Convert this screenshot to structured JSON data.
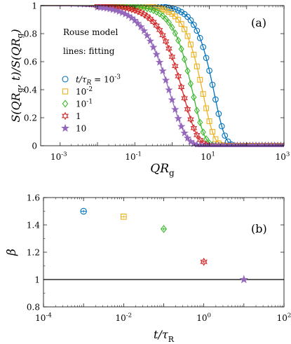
{
  "chart_data": [
    {
      "type": "scatter",
      "panel_label": "(a)",
      "annotation_lines": [
        "Rouse model",
        "lines: fitting"
      ],
      "xlabel": {
        "main": "QR",
        "sub": "g"
      },
      "ylabel": "S(QR_g, t) / S(QR_g)",
      "x_scale": "log",
      "xlim": [
        0.0003,
        1000
      ],
      "ylim": [
        0,
        1
      ],
      "x_ticks": [
        {
          "value": 0.001,
          "label": "10",
          "exp": "-3"
        },
        {
          "value": 0.1,
          "label": "10",
          "exp": "-1"
        },
        {
          "value": 10,
          "label": "10",
          "exp": "1"
        },
        {
          "value": 1000,
          "label": "10",
          "exp": "3"
        }
      ],
      "y_ticks": [
        {
          "value": 0,
          "label": "0"
        },
        {
          "value": 0.2,
          "label": "0.2"
        },
        {
          "value": 0.4,
          "label": "0.4"
        },
        {
          "value": 0.6,
          "label": "0.6"
        },
        {
          "value": 0.8,
          "label": "0.8"
        },
        {
          "value": 1,
          "label": "1"
        }
      ],
      "legend_position": "middle-left",
      "series": [
        {
          "name": "t/τ_R = 10^-3",
          "legend_main": "t/τ",
          "legend_sub": "R",
          "legend_rest": " = 10",
          "legend_exp": "-3",
          "marker": "circle",
          "color": "#0072BD",
          "q_half": 10.7,
          "beta": 1.5
        },
        {
          "name": "10^-2",
          "legend_main": "10",
          "legend_sub": "",
          "legend_rest": "",
          "legend_exp": "-2",
          "marker": "square",
          "color": "#EDB120",
          "q_half": 5.3,
          "beta": 1.46
        },
        {
          "name": "10^-1",
          "legend_main": "10",
          "legend_sub": "",
          "legend_rest": "",
          "legend_exp": "-1",
          "marker": "diamond",
          "color": "#3DB82E",
          "q_half": 2.8,
          "beta": 1.37
        },
        {
          "name": "1",
          "legend_main": "1",
          "legend_sub": "",
          "legend_rest": "",
          "legend_exp": "",
          "marker": "hexagram",
          "color": "#D62728",
          "q_half": 1.45,
          "beta": 1.13
        },
        {
          "name": "10",
          "legend_main": "10",
          "legend_sub": "",
          "legend_rest": "",
          "legend_exp": "",
          "marker": "pentagram",
          "color": "#9467BD",
          "q_half": 0.62,
          "beta": 1.0
        }
      ]
    },
    {
      "type": "scatter",
      "panel_label": "(b)",
      "xlabel": {
        "main": "t/τ",
        "sub": "R"
      },
      "ylabel": "β",
      "x_scale": "log",
      "xlim": [
        0.0001,
        100
      ],
      "ylim": [
        0.8,
        1.6
      ],
      "x_ticks": [
        {
          "value": 0.0001,
          "label": "10",
          "exp": "-4"
        },
        {
          "value": 0.01,
          "label": "10",
          "exp": "-2"
        },
        {
          "value": 1,
          "label": "10",
          "exp": "0"
        },
        {
          "value": 100,
          "label": "10",
          "exp": "2"
        }
      ],
      "y_ticks": [
        {
          "value": 0.8,
          "label": "0.8"
        },
        {
          "value": 1.0,
          "label": "1"
        },
        {
          "value": 1.2,
          "label": "1.2"
        },
        {
          "value": 1.4,
          "label": "1.4"
        },
        {
          "value": 1.6,
          "label": "1.6"
        }
      ],
      "reference_line": 1.0,
      "points": [
        {
          "x": 0.001,
          "y": 1.5,
          "err": 0.01,
          "marker": "circle",
          "color": "#0072BD"
        },
        {
          "x": 0.01,
          "y": 1.46,
          "err": 0.01,
          "marker": "square",
          "color": "#EDB120"
        },
        {
          "x": 0.1,
          "y": 1.37,
          "err": 0.01,
          "marker": "diamond",
          "color": "#3DB82E"
        },
        {
          "x": 1,
          "y": 1.13,
          "err": 0.01,
          "marker": "hexagram",
          "color": "#D62728"
        },
        {
          "x": 10,
          "y": 1.0,
          "err": 0.005,
          "marker": "pentagram",
          "color": "#9467BD"
        }
      ]
    }
  ]
}
